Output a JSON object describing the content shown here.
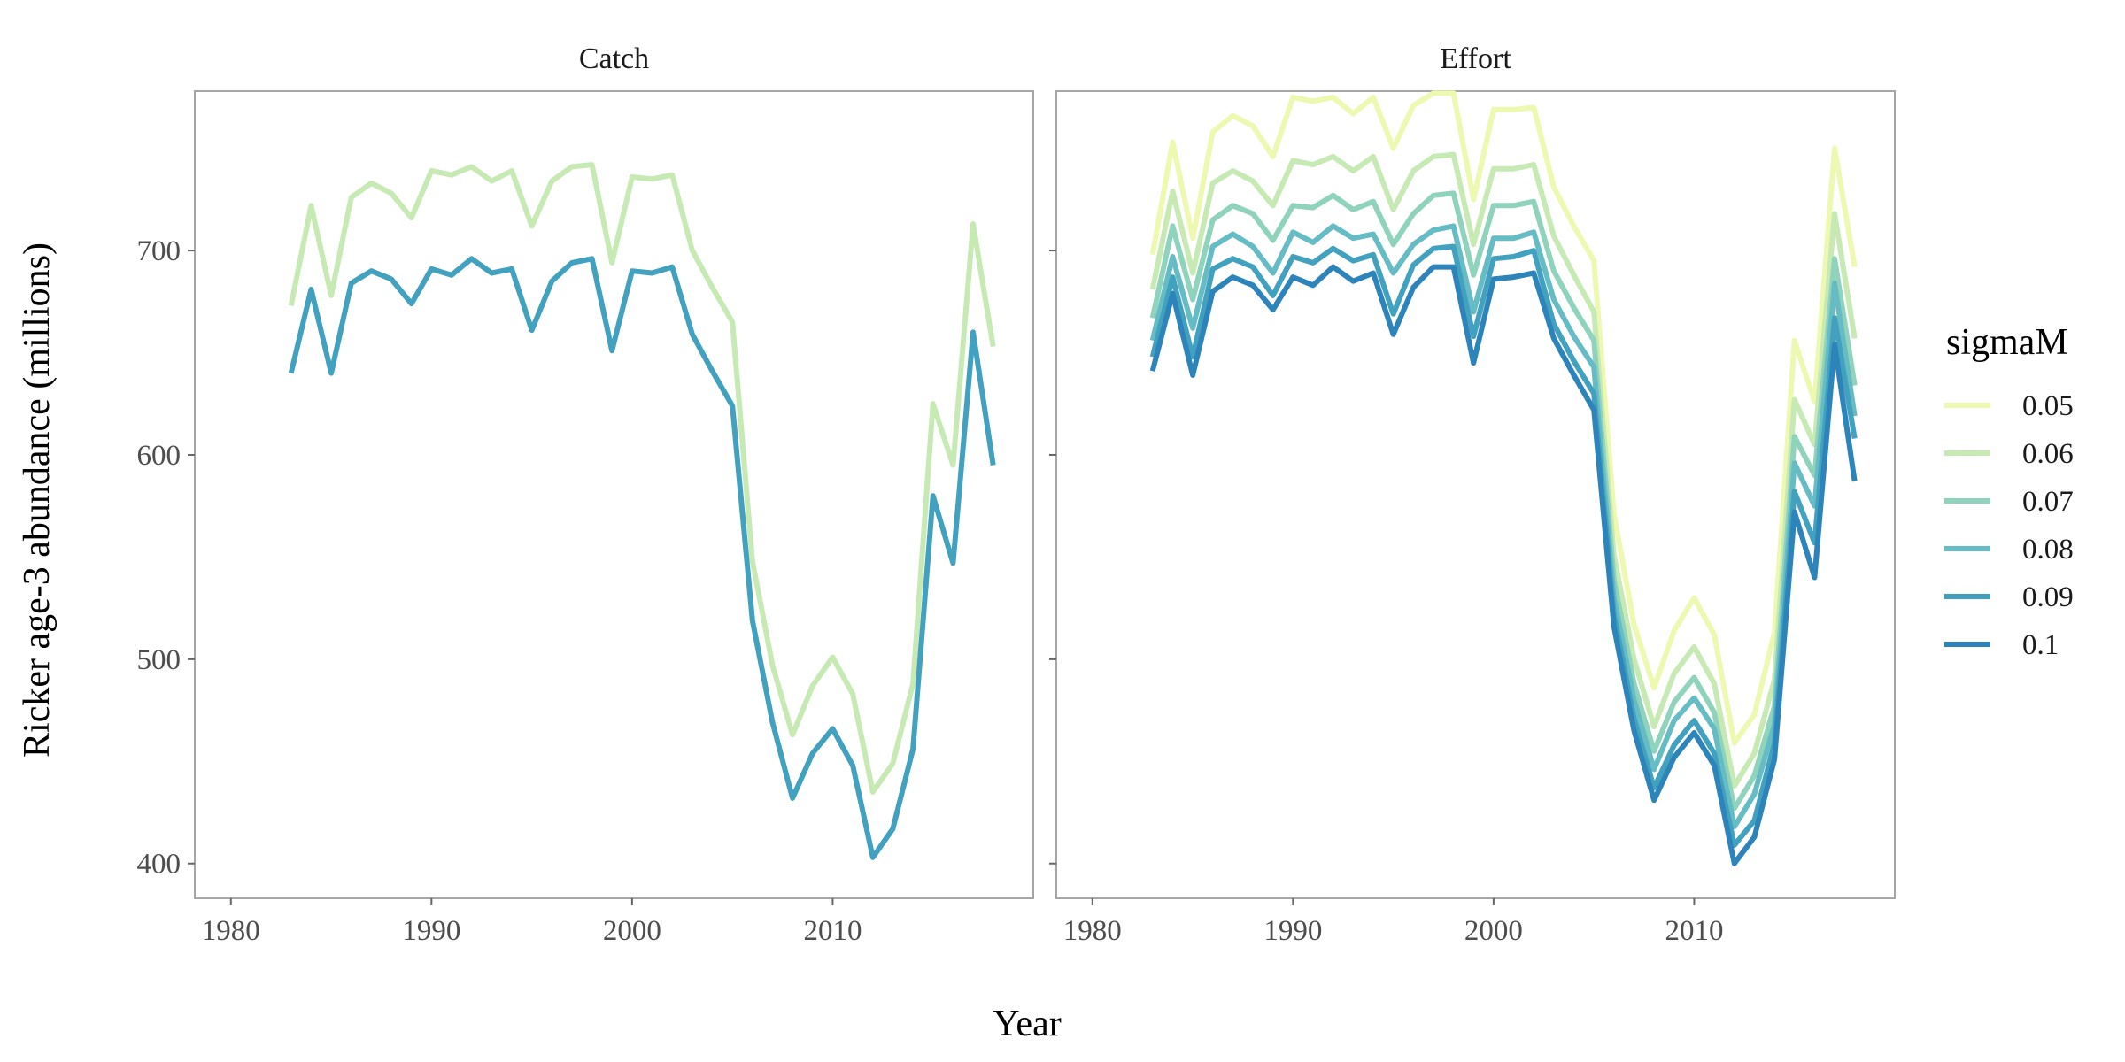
{
  "chart_data": {
    "type": "line",
    "xlabel": "Year",
    "ylabel": "Ricker age-3 abundance (millions)",
    "xlim": [
      1978.2,
      2020
    ],
    "ylim": [
      383,
      778
    ],
    "x_ticks": [
      "1980",
      "1990",
      "2000",
      "2010"
    ],
    "y_ticks": [
      "400",
      "500",
      "600",
      "700"
    ],
    "legend": {
      "title": "sigmaM",
      "placement": "right"
    },
    "years": [
      1983,
      1984,
      1985,
      1986,
      1987,
      1988,
      1989,
      1990,
      1991,
      1992,
      1993,
      1994,
      1995,
      1996,
      1997,
      1998,
      1999,
      2000,
      2001,
      2002,
      2003,
      2004,
      2005,
      2006,
      2007,
      2008,
      2009,
      2010,
      2011,
      2012,
      2013,
      2014,
      2015,
      2016,
      2017,
      2018
    ],
    "panels": [
      {
        "title": "Catch",
        "series": [
          {
            "name": "0.06",
            "color": "#c7e9b4",
            "values": [
              673,
              722,
              678,
              726,
              733,
              728,
              716,
              739,
              737,
              741,
              734,
              739,
              712,
              734,
              741,
              742,
              694,
              736,
              735,
              737,
              700,
              682,
              665,
              548,
              497,
              463,
              487,
              501,
              483,
              435,
              449,
              488,
              625,
              595,
              713,
              653
            ]
          },
          {
            "name": "0.09",
            "color": "#41a1be",
            "values": [
              640,
              681,
              640,
              684,
              690,
              686,
              674,
              691,
              688,
              696,
              689,
              691,
              661,
              685,
              694,
              696,
              651,
              690,
              689,
              692,
              659,
              641,
              624,
              519,
              469,
              432,
              454,
              466,
              448,
              403,
              417,
              456,
              580,
              547,
              660,
              595
            ]
          }
        ]
      },
      {
        "title": "Effort",
        "series": [
          {
            "name": "0.05",
            "color": "#edf8b1",
            "values": [
              698,
              753,
              706,
              758,
              766,
              761,
              746,
              775,
              773,
              775,
              767,
              775,
              750,
              771,
              777,
              777,
              725,
              769,
              769,
              770,
              731,
              712,
              695,
              571,
              517,
              486,
              514,
              530,
              512,
              459,
              473,
              513,
              656,
              626,
              750,
              692
            ]
          },
          {
            "name": "0.06",
            "color": "#c7e9b4",
            "values": [
              681,
              729,
              689,
              733,
              739,
              734,
              722,
              744,
              742,
              746,
              739,
              746,
              720,
              739,
              746,
              747,
              703,
              740,
              740,
              742,
              707,
              688,
              670,
              551,
              500,
              467,
              493,
              506,
              488,
              438,
              454,
              490,
              627,
              605,
              718,
              657
            ]
          },
          {
            "name": "0.07",
            "color": "#8fd3bd",
            "values": [
              667,
              712,
              676,
              715,
              722,
              718,
              705,
              722,
              721,
              727,
              720,
              724,
              703,
              718,
              727,
              728,
              688,
              722,
              722,
              724,
              690,
              672,
              656,
              539,
              488,
              455,
              479,
              491,
              474,
              427,
              443,
              477,
              609,
              590,
              696,
              634
            ]
          },
          {
            "name": "0.08",
            "color": "#66bcc4",
            "values": [
              656,
              697,
              662,
              702,
              708,
              702,
              689,
              709,
              704,
              712,
              706,
              708,
              689,
              703,
              710,
              712,
              670,
              706,
              706,
              709,
              676,
              658,
              643,
              530,
              480,
              446,
              470,
              481,
              466,
              418,
              434,
              468,
              596,
              575,
              684,
              619
            ]
          },
          {
            "name": "0.09",
            "color": "#41a1be",
            "values": [
              648,
              687,
              648,
              691,
              696,
              692,
              678,
              697,
              694,
              701,
              695,
              698,
              669,
              693,
              701,
              702,
              658,
              696,
              697,
              700,
              664,
              646,
              630,
              522,
              471,
              437,
              458,
              470,
              454,
              409,
              421,
              459,
              582,
              557,
              667,
              608
            ]
          },
          {
            "name": "0.1",
            "color": "#2c84ba",
            "values": [
              641,
              679,
              639,
              680,
              687,
              683,
              671,
              687,
              683,
              692,
              685,
              689,
              659,
              682,
              692,
              692,
              645,
              686,
              687,
              689,
              657,
              639,
              622,
              516,
              465,
              431,
              452,
              464,
              448,
              400,
              413,
              451,
              572,
              540,
              654,
              587
            ]
          }
        ]
      }
    ]
  }
}
